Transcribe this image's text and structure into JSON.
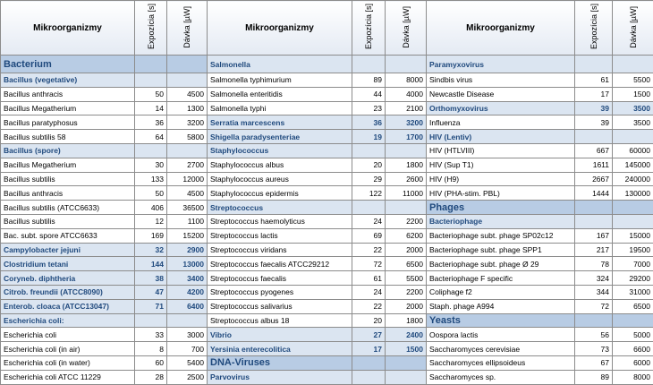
{
  "table": {
    "header": [
      {
        "name": "Mikroorganizmy",
        "exposure": "Expozícia [s]",
        "dose": "Dávka [µW]"
      },
      {
        "name": "Mikroorganizmy",
        "exposure": "Expozícia [s]",
        "dose": "Dávka [µW]"
      },
      {
        "name": "Mikroorganizmy",
        "exposure": "Expozícia [s]",
        "dose": "Dávka [µW]"
      }
    ],
    "rows": [
      [
        {
          "kind": "section",
          "name": "Bacterium"
        },
        {
          "kind": "group",
          "name": "Salmonella"
        },
        {
          "kind": "group",
          "name": "Paramyxovirus"
        }
      ],
      [
        {
          "kind": "group",
          "name": "Bacillus (vegetative)"
        },
        {
          "kind": "item",
          "name": "Salmonella typhimurium",
          "exposure": 89,
          "dose": 8000
        },
        {
          "kind": "item",
          "name": "Sindbis virus",
          "exposure": 61,
          "dose": 5500
        }
      ],
      [
        {
          "kind": "item",
          "name": "Bacillus anthracis",
          "exposure": 50,
          "dose": 4500
        },
        {
          "kind": "item",
          "name": "Salmonella enteritidis",
          "exposure": 44,
          "dose": 4000
        },
        {
          "kind": "item",
          "name": "Newcastle Disease",
          "exposure": 17,
          "dose": 1500
        }
      ],
      [
        {
          "kind": "item",
          "name": "Bacillus Megatherium",
          "exposure": 14,
          "dose": 1300
        },
        {
          "kind": "item",
          "name": "Salmonella typhi",
          "exposure": 23,
          "dose": 2100
        },
        {
          "kind": "group",
          "name": "Orthomyxovirus",
          "exposure": 39,
          "dose": 3500
        }
      ],
      [
        {
          "kind": "item",
          "name": "Bacillus paratyphosus",
          "exposure": 36,
          "dose": 3200
        },
        {
          "kind": "group",
          "name": "Serratia marcescens",
          "exposure": 36,
          "dose": 3200
        },
        {
          "kind": "item",
          "name": "Influenza",
          "exposure": 39,
          "dose": 3500
        }
      ],
      [
        {
          "kind": "item",
          "name": "Bacillus subtilis 58",
          "exposure": 64,
          "dose": 5800
        },
        {
          "kind": "group",
          "name": "Shigella paradysenteriae",
          "exposure": 19,
          "dose": 1700
        },
        {
          "kind": "group",
          "name": "HIV (Lentiv)"
        }
      ],
      [
        {
          "kind": "group",
          "name": "Bacillus (spore)"
        },
        {
          "kind": "group",
          "name": "Staphylococcus"
        },
        {
          "kind": "item",
          "name": "HIV (HTLVIII)",
          "exposure": 667,
          "dose": 60000
        }
      ],
      [
        {
          "kind": "item",
          "name": "Bacillus Megatherium",
          "exposure": 30,
          "dose": 2700
        },
        {
          "kind": "item",
          "name": "Staphylococcus albus",
          "exposure": 20,
          "dose": 1800
        },
        {
          "kind": "item",
          "name": "HIV (Sup T1)",
          "exposure": 1611,
          "dose": 145000
        }
      ],
      [
        {
          "kind": "item",
          "name": "Bacillus subtilis",
          "exposure": 133,
          "dose": 12000
        },
        {
          "kind": "item",
          "name": "Staphylococcus aureus",
          "exposure": 29,
          "dose": 2600
        },
        {
          "kind": "item",
          "name": "HIV (H9)",
          "exposure": 2667,
          "dose": 240000
        }
      ],
      [
        {
          "kind": "item",
          "name": "Bacillus anthracis",
          "exposure": 50,
          "dose": 4500
        },
        {
          "kind": "item",
          "name": "Staphylococcus epidermis",
          "exposure": 122,
          "dose": 11000
        },
        {
          "kind": "item",
          "name": "HIV (PHA-stim. PBL)",
          "exposure": 1444,
          "dose": 130000
        }
      ],
      [
        {
          "kind": "item",
          "name": "Bacillus subtilis (ATCC6633)",
          "exposure": 406,
          "dose": 36500
        },
        {
          "kind": "group",
          "name": "Streptococcus"
        },
        {
          "kind": "section",
          "name": "Phages"
        }
      ],
      [
        {
          "kind": "item",
          "name": "Bacillus subtilis",
          "exposure": 12,
          "dose": 1100
        },
        {
          "kind": "item",
          "name": "Streptococcus haemolyticus",
          "exposure": 24,
          "dose": 2200
        },
        {
          "kind": "group",
          "name": "Bacteriophage"
        }
      ],
      [
        {
          "kind": "item",
          "name": "Bac. subt. spore ATCC6633",
          "exposure": 169,
          "dose": 15200
        },
        {
          "kind": "item",
          "name": "Streptococcus lactis",
          "exposure": 69,
          "dose": 6200
        },
        {
          "kind": "item",
          "name": "Bacteriophage subt. phage SP02c12",
          "exposure": 167,
          "dose": 15000
        }
      ],
      [
        {
          "kind": "group",
          "name": "Campylobacter jejuni",
          "exposure": 32,
          "dose": 2900
        },
        {
          "kind": "item",
          "name": "Streptococcus viridans",
          "exposure": 22,
          "dose": 2000
        },
        {
          "kind": "item",
          "name": "Bacteriophage subt. phage SPP1",
          "exposure": 217,
          "dose": 19500
        }
      ],
      [
        {
          "kind": "group",
          "name": "Clostridium tetani",
          "exposure": 144,
          "dose": 13000
        },
        {
          "kind": "item",
          "name": "Streptococcus faecalis ATCC29212",
          "exposure": 72,
          "dose": 6500
        },
        {
          "kind": "item",
          "name": "Bacteriophage subt. phage Ø 29",
          "exposure": 78,
          "dose": 7000
        }
      ],
      [
        {
          "kind": "group",
          "name": "Coryneb. diphtheria",
          "exposure": 38,
          "dose": 3400
        },
        {
          "kind": "item",
          "name": "Streptococcus faecalis",
          "exposure": 61,
          "dose": 5500
        },
        {
          "kind": "item",
          "name": "Bacteriophage F specific",
          "exposure": 324,
          "dose": 29200
        }
      ],
      [
        {
          "kind": "group",
          "name": "Citrob. freundii (ATCC8090)",
          "exposure": 47,
          "dose": 4200
        },
        {
          "kind": "item",
          "name": "Streptococcus pyogenes",
          "exposure": 24,
          "dose": 2200
        },
        {
          "kind": "item",
          "name": "Coliphage f2",
          "exposure": 344,
          "dose": 31000
        }
      ],
      [
        {
          "kind": "group",
          "name": "Enterob. cloaca (ATCC13047)",
          "exposure": 71,
          "dose": 6400
        },
        {
          "kind": "item",
          "name": "Streptococcus salivarius",
          "exposure": 22,
          "dose": 2000
        },
        {
          "kind": "item",
          "name": "Staph. phage A994",
          "exposure": 72,
          "dose": 6500
        }
      ],
      [
        {
          "kind": "group",
          "name": "Escherichia coli:"
        },
        {
          "kind": "item",
          "name": "Streptococcus albus 18",
          "exposure": 20,
          "dose": 1800
        },
        {
          "kind": "section",
          "name": "Yeasts"
        }
      ],
      [
        {
          "kind": "item",
          "name": "Escherichia coli",
          "exposure": 33,
          "dose": 3000
        },
        {
          "kind": "group",
          "name": "Vibrio",
          "exposure": 27,
          "dose": 2400
        },
        {
          "kind": "item",
          "name": "Oospora lactis",
          "exposure": 56,
          "dose": 5000
        }
      ],
      [
        {
          "kind": "item",
          "name": "Escherichia coli (in air)",
          "exposure": 8,
          "dose": 700
        },
        {
          "kind": "group",
          "name": "Yersinia enterecolitica",
          "exposure": 17,
          "dose": 1500
        },
        {
          "kind": "item",
          "name": "Saccharomyces cerevisiae",
          "exposure": 73,
          "dose": 6600
        }
      ],
      [
        {
          "kind": "item",
          "name": "Escherichia coli (in water)",
          "exposure": 60,
          "dose": 5400
        },
        {
          "kind": "section",
          "name": "DNA-Viruses"
        },
        {
          "kind": "item",
          "name": "Saccharomyces ellipsoideus",
          "exposure": 67,
          "dose": 6000
        }
      ],
      [
        {
          "kind": "item",
          "name": "Escherichia coli ATCC 11229",
          "exposure": 28,
          "dose": 2500
        },
        {
          "kind": "group",
          "name": "Parvovirus"
        },
        {
          "kind": "item",
          "name": "Saccharomyces sp.",
          "exposure": 89,
          "dose": 8000
        }
      ]
    ]
  }
}
